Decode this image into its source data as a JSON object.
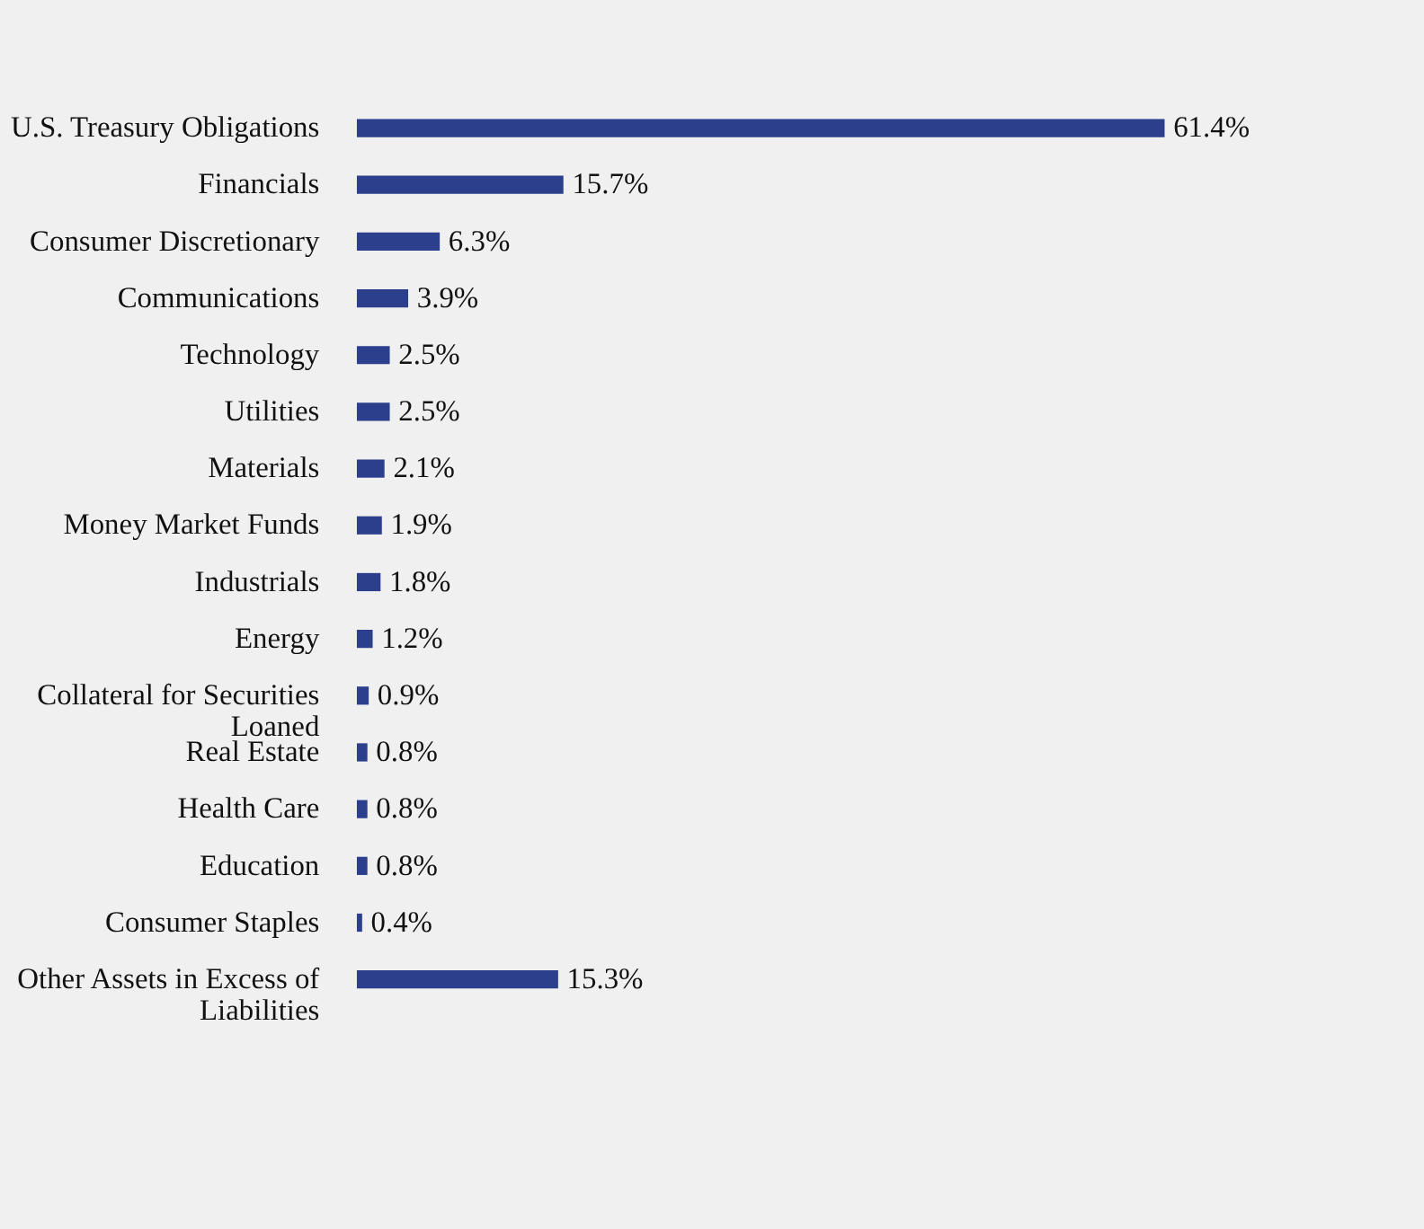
{
  "chart_data": {
    "type": "bar",
    "orientation": "horizontal",
    "data_labels": true,
    "grid": false,
    "categories": [
      "U.S. Treasury Obligations",
      "Financials",
      "Consumer Discretionary",
      "Communications",
      "Technology",
      "Utilities",
      "Materials",
      "Money Market Funds",
      "Industrials",
      "Energy",
      "Collateral for Securities Loaned",
      "Real Estate",
      "Health Care",
      "Education",
      "Consumer Staples",
      "Other Assets in Excess of Liabilities"
    ],
    "values": [
      61.4,
      15.7,
      6.3,
      3.9,
      2.5,
      2.5,
      2.1,
      1.9,
      1.8,
      1.2,
      0.9,
      0.8,
      0.8,
      0.8,
      0.4,
      15.3
    ],
    "value_labels": [
      "61.4%",
      "15.7%",
      "6.3%",
      "3.9%",
      "2.5%",
      "2.5%",
      "2.1%",
      "1.9%",
      "1.8%",
      "1.2%",
      "0.9%",
      "0.8%",
      "0.8%",
      "0.8%",
      "0.4%",
      "15.3%"
    ],
    "color": "#2b3f8c"
  }
}
